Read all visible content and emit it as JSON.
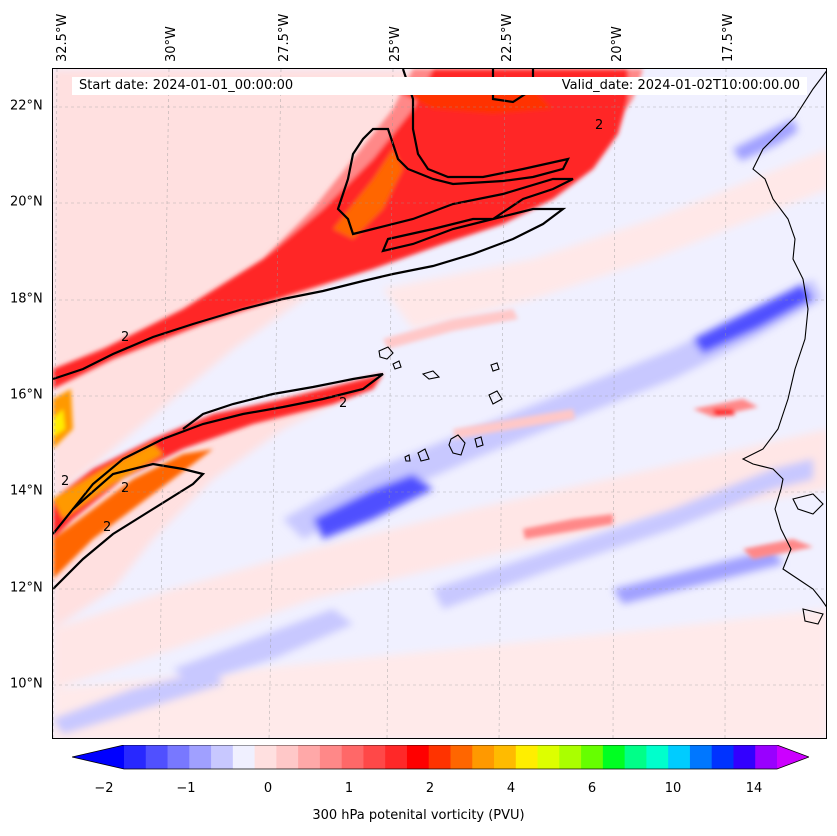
{
  "map": {
    "start_date": "Start date: 2024-01-01_00:00:00",
    "valid_date": "Valid_date: 2024-01-02T10:00:00.00",
    "lon_labels": [
      "32.5°W",
      "30°W",
      "27.5°W",
      "25°W",
      "22.5°W",
      "20°W",
      "17.5°W"
    ],
    "lat_labels": [
      "22°N",
      "20°N",
      "18°N",
      "16°N",
      "14°N",
      "12°N",
      "10°N"
    ],
    "contour_label": "2",
    "colors": {
      "low": "#0000ff",
      "mid": "#f0f0ff",
      "high": "#ff0000",
      "peak": "#ff9900"
    }
  },
  "colorbar": {
    "title": "300 hPa potenital vorticity (PVU)",
    "ticks": [
      "−2",
      "−1",
      "0",
      "1",
      "2",
      "4",
      "6",
      "10",
      "14"
    ],
    "colors": [
      "#0000ff",
      "#2828ff",
      "#5050ff",
      "#7878ff",
      "#a0a0ff",
      "#c8c8ff",
      "#f0f0ff",
      "#ffe0e0",
      "#ffc8c8",
      "#ffa8a8",
      "#ff8888",
      "#ff6868",
      "#ff4848",
      "#ff2828",
      "#ff0000",
      "#ff3300",
      "#ff6600",
      "#ff9900",
      "#ffbb00",
      "#ffee00",
      "#ddff00",
      "#aaff00",
      "#66ff00",
      "#00ff22",
      "#00ff88",
      "#00ffcc",
      "#00ccff",
      "#0077ff",
      "#0033ff",
      "#3300ff",
      "#9900ff",
      "#cc00ff"
    ]
  }
}
